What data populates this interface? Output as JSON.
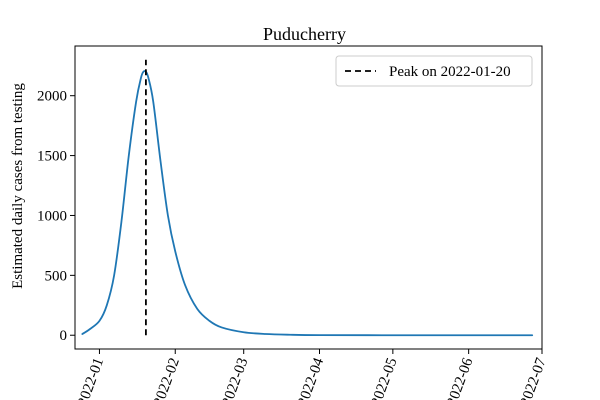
{
  "chart_data": {
    "type": "line",
    "title": "Puducherry",
    "xlabel": "",
    "ylabel": "Estimated daily cases from testing",
    "x_ticks": [
      "2022-01-01",
      "2022-02-01",
      "2022-03-01",
      "2022-04-01",
      "2022-05-01",
      "2022-06-01",
      "2022-07-01"
    ],
    "x_tick_labels": [
      "2022-01",
      "2022-02",
      "2022-03",
      "2022-04",
      "2022-05",
      "2022-06",
      "2022-07"
    ],
    "y_ticks": [
      0,
      500,
      1000,
      1500,
      2000
    ],
    "xlim": [
      "2021-12-22",
      "2022-07-01"
    ],
    "ylim": [
      -115,
      2415
    ],
    "series": [
      {
        "color": "#1f77b4",
        "x": [
          "2021-12-25",
          "2021-12-28",
          "2022-01-01",
          "2022-01-04",
          "2022-01-07",
          "2022-01-10",
          "2022-01-13",
          "2022-01-16",
          "2022-01-18",
          "2022-01-19",
          "2022-01-20",
          "2022-01-21",
          "2022-01-23",
          "2022-01-26",
          "2022-01-29",
          "2022-02-01",
          "2022-02-05",
          "2022-02-10",
          "2022-02-15",
          "2022-02-20",
          "2022-03-01",
          "2022-03-10",
          "2022-03-20",
          "2022-04-01",
          "2022-05-01",
          "2022-06-01",
          "2022-06-27"
        ],
        "y": [
          10,
          50,
          120,
          250,
          500,
          950,
          1500,
          1950,
          2150,
          2200,
          2200,
          2150,
          1950,
          1450,
          1000,
          700,
          420,
          220,
          120,
          65,
          25,
          10,
          4,
          1,
          0,
          0,
          0
        ]
      }
    ],
    "peak_line": {
      "x": "2022-01-20",
      "y_range": [
        0,
        2300
      ],
      "style": "dashed",
      "color": "#000000"
    },
    "legend": {
      "position": "top-right",
      "entries": [
        "Peak on 2022-01-20"
      ]
    },
    "grid": false
  }
}
